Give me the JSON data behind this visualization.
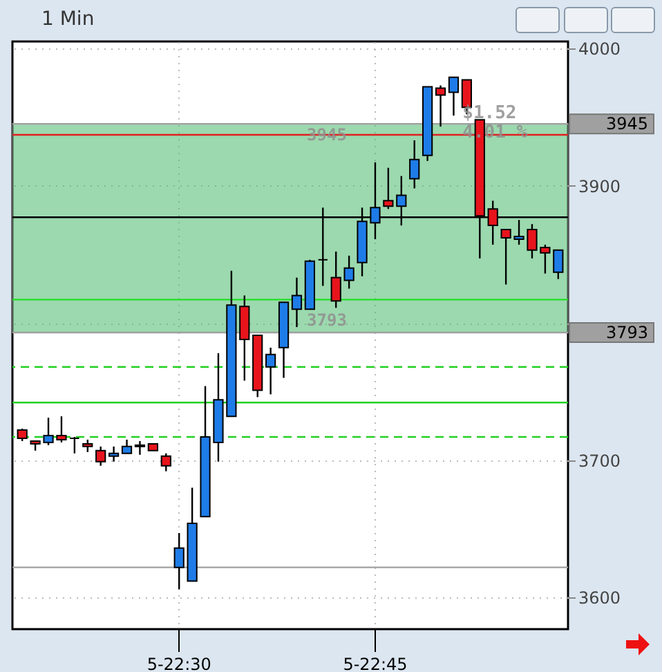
{
  "chart_data": {
    "type": "candlestick",
    "title": "1 Min",
    "categories": [
      null,
      null,
      null,
      null,
      null,
      null,
      null,
      null,
      null,
      null,
      null,
      null,
      "5-22:30",
      null,
      null,
      null,
      null,
      null,
      null,
      null,
      null,
      null,
      null,
      null,
      null,
      null,
      null,
      "5-22:45",
      null,
      null,
      null,
      null,
      null,
      null,
      null,
      null,
      null,
      null,
      null,
      null,
      null,
      null
    ],
    "ohlc": [
      [
        3722,
        3723,
        3714,
        3716
      ],
      [
        3714,
        3714,
        3707,
        3712
      ],
      [
        3713,
        3731,
        3711,
        3718
      ],
      [
        3718,
        3732,
        3713,
        3715
      ],
      [
        3716,
        3717,
        3705,
        3716
      ],
      [
        3712,
        3715,
        3706,
        3710
      ],
      [
        3707,
        3710,
        3696,
        3699
      ],
      [
        3703,
        3710,
        3699,
        3705
      ],
      [
        3705,
        3715,
        3705,
        3710
      ],
      [
        3710,
        3714,
        3704,
        3711
      ],
      [
        3712,
        3712,
        3707,
        3707
      ],
      [
        3703,
        3705,
        3692,
        3696
      ],
      [
        3622,
        3647,
        3606,
        3636
      ],
      [
        3612,
        3680,
        3612,
        3654
      ],
      [
        3659,
        3754,
        3659,
        3717
      ],
      [
        3713,
        3778,
        3699,
        3744
      ],
      [
        3732,
        3838,
        3732,
        3813
      ],
      [
        3812,
        3820,
        3758,
        3788
      ],
      [
        3791,
        3791,
        3746,
        3751
      ],
      [
        3768,
        3782,
        3748,
        3777
      ],
      [
        3782,
        3815,
        3760,
        3815
      ],
      [
        3810,
        3833,
        3797,
        3820
      ],
      [
        3810,
        3846,
        3810,
        3845
      ],
      [
        3846,
        3884,
        3827,
        3846
      ],
      [
        3833,
        3852,
        3811,
        3816
      ],
      [
        3831,
        3849,
        3825,
        3840
      ],
      [
        3844,
        3884,
        3834,
        3874
      ],
      [
        3873,
        3917,
        3861,
        3884
      ],
      [
        3889,
        3913,
        3883,
        3885
      ],
      [
        3885,
        3907,
        3871,
        3893
      ],
      [
        3905,
        3933,
        3898,
        3919
      ],
      [
        3922,
        3972,
        3918,
        3972
      ],
      [
        3971,
        3973,
        3943,
        3966
      ],
      [
        3968,
        3979,
        3951,
        3979
      ],
      [
        3977,
        3977,
        3952,
        3957
      ],
      [
        3948,
        3948,
        3847,
        3878
      ],
      [
        3883,
        3889,
        3857,
        3871
      ],
      [
        3868,
        3868,
        3828,
        3862
      ],
      [
        3861,
        3875,
        3857,
        3863
      ],
      [
        3868,
        3872,
        3847,
        3853
      ],
      [
        3855,
        3857,
        3836,
        3851
      ],
      [
        3837,
        3853,
        3832,
        3853
      ]
    ],
    "colors": [
      "#e8141c",
      "#e8141c",
      "#1e7ce8",
      "#e8141c",
      "#000000",
      "#e8141c",
      "#e8141c",
      "#1e7ce8",
      "#1e7ce8",
      "#1e7ce8",
      "#e8141c",
      "#e8141c",
      "#1e7ce8",
      "#1e7ce8",
      "#1e7ce8",
      "#1e7ce8",
      "#1e7ce8",
      "#e8141c",
      "#e8141c",
      "#1e7ce8",
      "#1e7ce8",
      "#1e7ce8",
      "#1e7ce8",
      "#000000",
      "#e8141c",
      "#1e7ce8",
      "#1e7ce8",
      "#1e7ce8",
      "#e8141c",
      "#1e7ce8",
      "#1e7ce8",
      "#1e7ce8",
      "#e8141c",
      "#1e7ce8",
      "#e8141c",
      "#e8141c",
      "#e8141c",
      "#e8141c",
      "#1e7ce8",
      "#e8141c",
      "#e8141c",
      "#1e7ce8"
    ],
    "ylim": [
      3577,
      4005
    ],
    "yticks": [
      3600,
      3700,
      {
        "value": 3800,
        "label": null
      },
      3900,
      4000
    ],
    "grid": true,
    "ref_lines": [
      {
        "axis": "y",
        "value": 3945,
        "label": "3945",
        "color": "#a0a0a0"
      },
      {
        "axis": "y",
        "value": 3793,
        "label": "3793",
        "color": "#a0a0a0"
      },
      {
        "axis": "y",
        "value": 3937,
        "color": "#e02020"
      },
      {
        "axis": "y",
        "value": 3877,
        "color": "#000000"
      },
      {
        "axis": "y",
        "value": 3817,
        "color": "#22e022"
      },
      {
        "axis": "y",
        "value": 3768,
        "color": "#22d022",
        "line_style": "dashed"
      },
      {
        "axis": "y",
        "value": 3742,
        "color": "#22d022"
      },
      {
        "axis": "y",
        "value": 3717,
        "color": "#22d022",
        "line_style": "dashed"
      },
      {
        "axis": "y",
        "value": 3622,
        "color": "#a0a0a0"
      }
    ],
    "bands": [
      {
        "axis": "y",
        "from": 3793,
        "to": 3945,
        "color": "#4cbb6c"
      }
    ],
    "annotations": [
      "3945",
      "3793",
      "$1.52",
      "4.01 %"
    ]
  }
}
